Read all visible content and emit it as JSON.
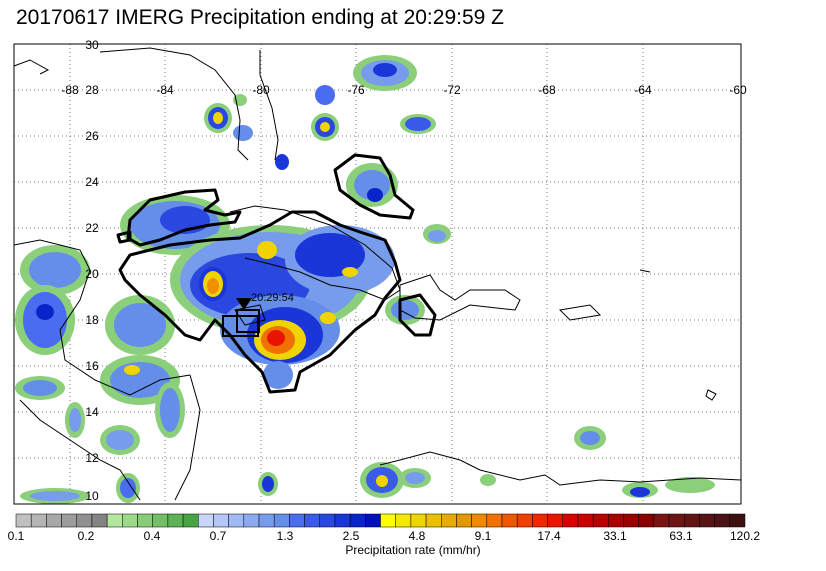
{
  "title": "20170617 IMERG Precipitation ending at 20:29:59 Z",
  "map": {
    "lon_labels": [
      "-88",
      "-84",
      "-80",
      "-76",
      "-72",
      "-68",
      "-64",
      "-60"
    ],
    "lat_labels": [
      "30",
      "28",
      "26",
      "24",
      "22",
      "20",
      "18",
      "16",
      "14",
      "12",
      "10"
    ],
    "track_time_label": "20:29:54",
    "grid": "dotted"
  },
  "colorbar": {
    "caption": "Precipitation rate (mm/hr)",
    "tick_labels": [
      "0.1",
      "0.2",
      "0.4",
      "0.7",
      "1.3",
      "2.5",
      "4.8",
      "9.1",
      "17.4",
      "33.1",
      "63.1",
      "120.2"
    ],
    "colors": [
      "#c0c0c0",
      "#b4b4b4",
      "#a8a8a8",
      "#9c9c9c",
      "#909090",
      "#848484",
      "#b4e6a0",
      "#9ed98a",
      "#88cc78",
      "#72bf66",
      "#5cb254",
      "#46a542",
      "#c8d4f8",
      "#b4c6f6",
      "#a0b8f4",
      "#8caaf0",
      "#789cec",
      "#648ee8",
      "#4a6cf0",
      "#3a5ae8",
      "#2a48e0",
      "#1a36d8",
      "#0a24cc",
      "#0010bc",
      "#ffff00",
      "#f4e800",
      "#f0d400",
      "#ecc000",
      "#e8ac00",
      "#e49800",
      "#f08800",
      "#f07000",
      "#f05800",
      "#f04000",
      "#f02800",
      "#e81400",
      "#d80000",
      "#c80000",
      "#b80000",
      "#a80000",
      "#980000",
      "#880000",
      "#7a1414",
      "#6e1414",
      "#621414",
      "#561414",
      "#4a1414",
      "#3e1010"
    ]
  }
}
